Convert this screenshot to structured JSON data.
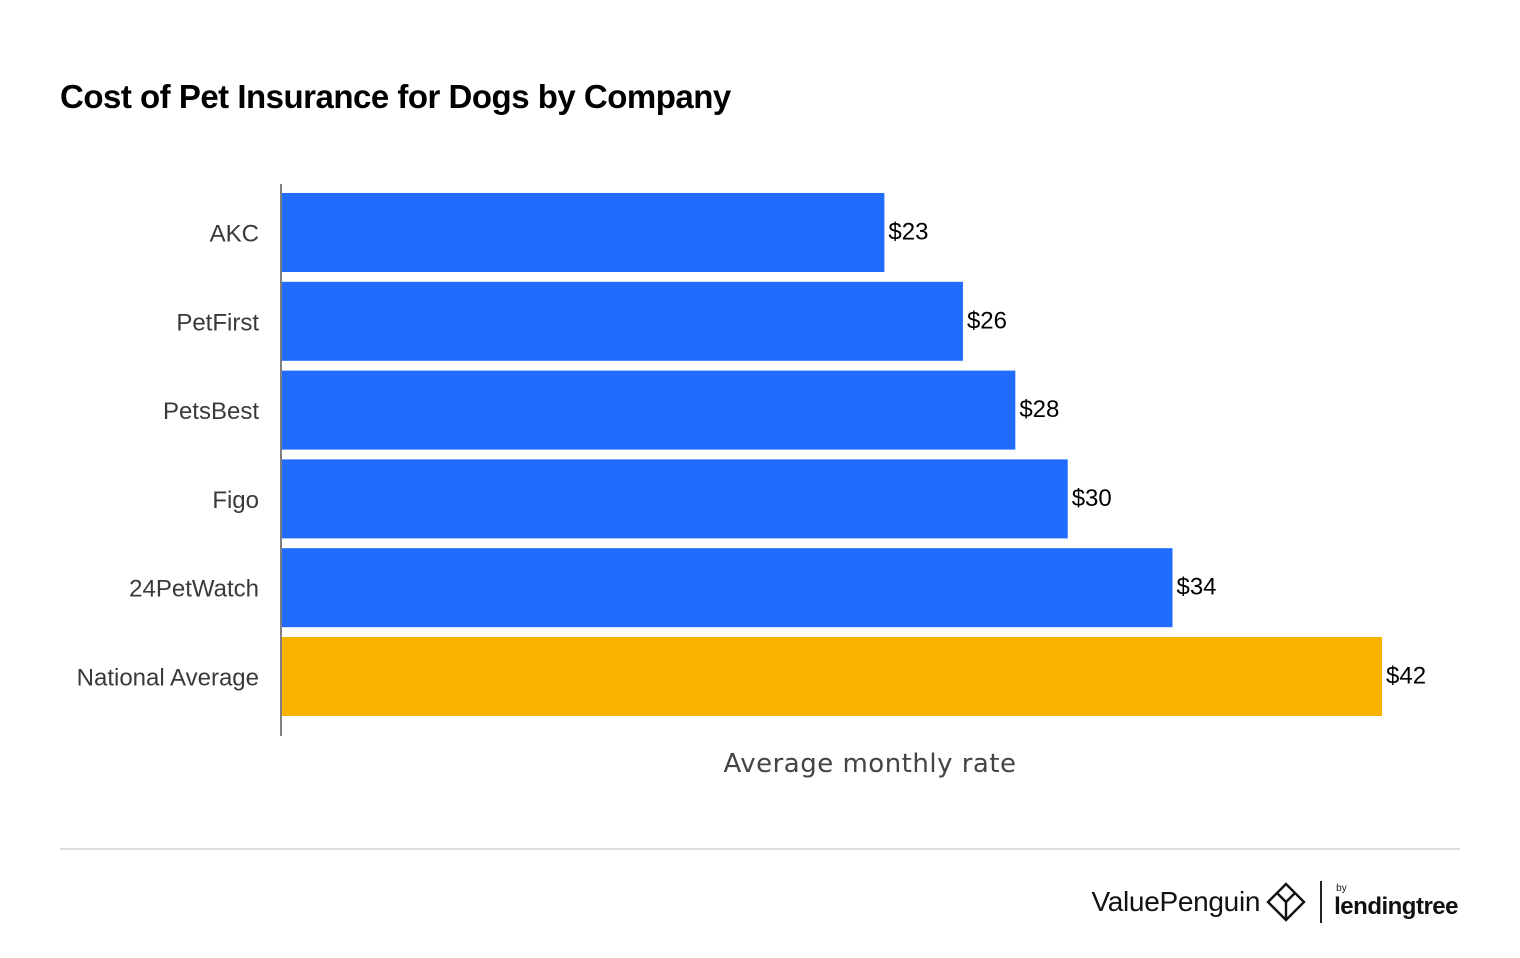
{
  "chart_data": {
    "type": "bar",
    "orientation": "horizontal",
    "title": "Cost of Pet Insurance for Dogs by Company",
    "xlabel": "Average monthly rate",
    "ylabel": "",
    "categories": [
      "AKC",
      "PetFirst",
      "PetsBest",
      "Figo",
      "24PetWatch",
      "National Average"
    ],
    "values": [
      23,
      26,
      28,
      30,
      34,
      42
    ],
    "value_labels": [
      "$23",
      "$26",
      "$28",
      "$30",
      "$34",
      "$42"
    ],
    "xlim": [
      0,
      42
    ],
    "grid": false,
    "legend": "none",
    "colors": {
      "company": "#216cff",
      "national_average": "#f8b200",
      "axis": "#7f7f7f"
    }
  },
  "footer": {
    "brand": "ValuePenguin",
    "by": "by",
    "partner": "lendingtree"
  }
}
